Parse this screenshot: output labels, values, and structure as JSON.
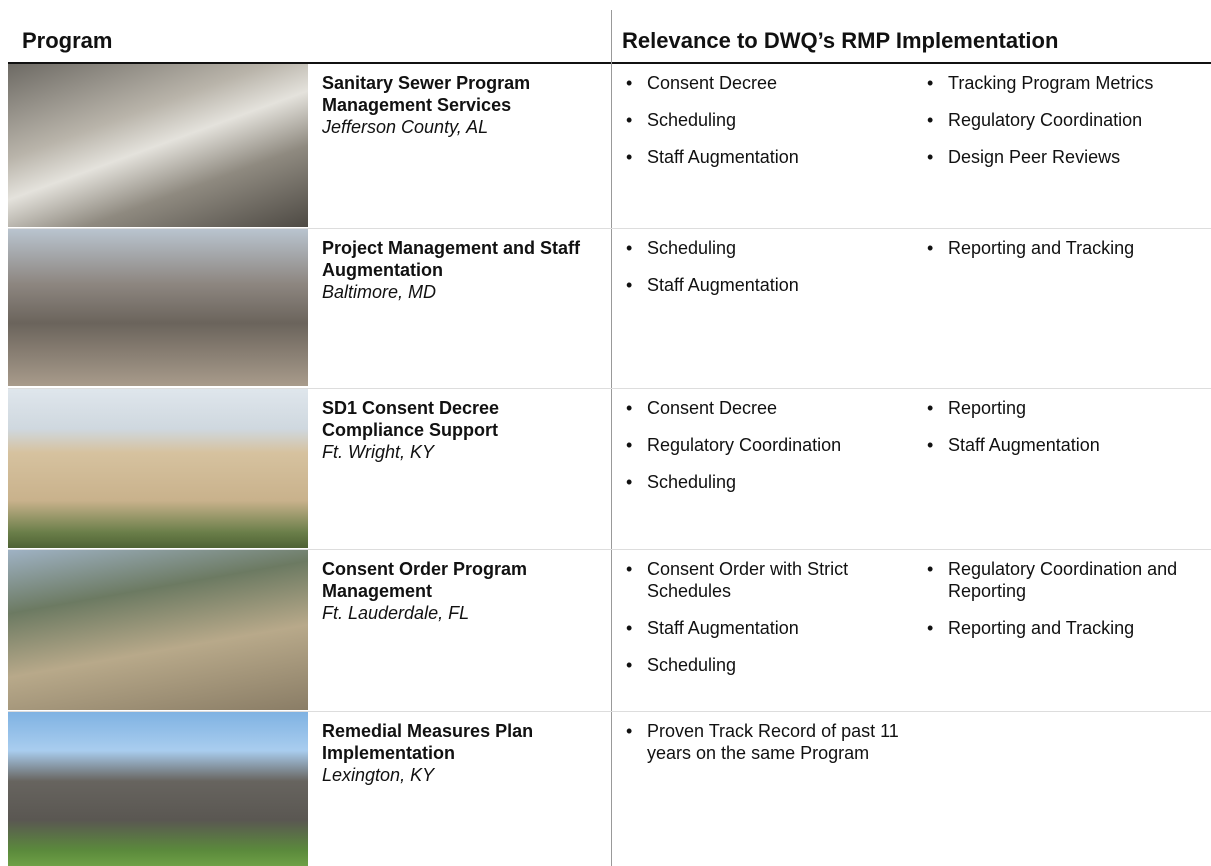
{
  "header": {
    "program": "Program",
    "relevance": "Relevance to DWQ’s RMP Implementation"
  },
  "rows": [
    {
      "title": "Sanitary Sewer Program Management Services",
      "location": "Jefferson County, AL",
      "col1": [
        "Consent Decree",
        "Scheduling",
        "Staff Augmentation"
      ],
      "col2": [
        "Tracking Program Metrics",
        "Regulatory Coordination",
        "Design Peer Reviews"
      ]
    },
    {
      "title": "Project Management and Staff Augmentation",
      "location": "Baltimore, MD",
      "col1": [
        "Scheduling",
        "Staff Augmentation"
      ],
      "col2": [
        "Reporting and Tracking"
      ]
    },
    {
      "title": "SD1 Consent Decree Compliance Support",
      "location": "Ft. Wright, KY",
      "col1": [
        "Consent Decree",
        "Regulatory Coordination",
        "Scheduling"
      ],
      "col2": [
        "Reporting",
        "Staff Augmentation"
      ]
    },
    {
      "title": "Consent Order Program Management",
      "location": "Ft. Lauderdale, FL",
      "col1": [
        "Consent Order with Strict Schedules",
        "Staff Augmentation",
        "Scheduling"
      ],
      "col2": [
        "Regulatory Coordination and Reporting",
        "Reporting and Tracking"
      ]
    },
    {
      "title": "Remedial Measures Plan Implementation",
      "location": "Lexington, KY",
      "col1": [
        "Proven Track Record of past 11 years on the same Program"
      ],
      "col2": []
    }
  ]
}
